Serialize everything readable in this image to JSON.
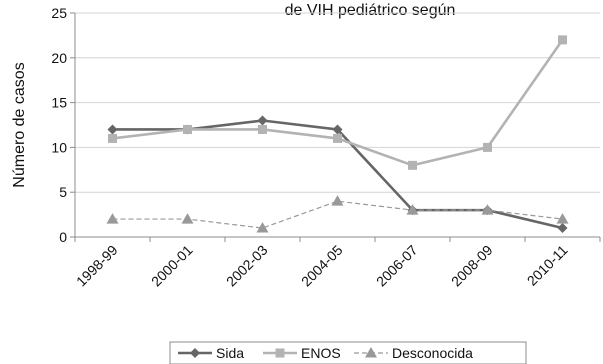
{
  "chart_data": {
    "type": "line",
    "title": "",
    "title_fragment": "de VIH pediátrico según",
    "ylabel": "Número de casos",
    "xlabel": "",
    "categories": [
      "1998-99",
      "2000-01",
      "2002-03",
      "2004-05",
      "2006-07",
      "2008-09",
      "2010-11"
    ],
    "ylim": [
      0,
      25
    ],
    "yticks": [
      0,
      5,
      10,
      15,
      20,
      25
    ],
    "grid": true,
    "legend_position": "bottom",
    "series": [
      {
        "name": "Sida",
        "values": [
          12,
          12,
          13,
          12,
          3,
          3,
          1
        ],
        "color": "#666666",
        "marker": "diamond",
        "dash": "solid"
      },
      {
        "name": "ENOS",
        "values": [
          11,
          12,
          12,
          11,
          8,
          10,
          22
        ],
        "color": "#b3b3b3",
        "marker": "square",
        "dash": "solid"
      },
      {
        "name": "Desconocida",
        "values": [
          2,
          2,
          1,
          4,
          3,
          3,
          2
        ],
        "color": "#999999",
        "marker": "triangle",
        "dash": "dashed"
      }
    ]
  }
}
